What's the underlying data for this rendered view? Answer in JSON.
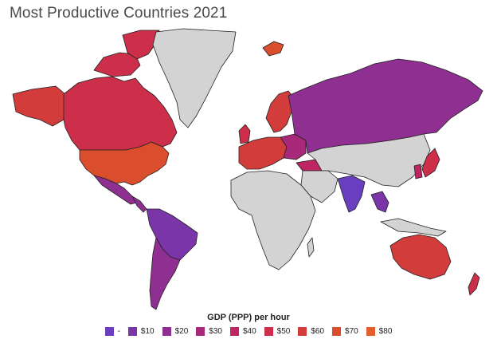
{
  "title": "Most Productive Countries 2021",
  "legend": {
    "title": "GDP (PPP) per hour",
    "items": [
      {
        "label": "-",
        "color": "#6a3fbf"
      },
      {
        "label": "$10",
        "color": "#7a35a9"
      },
      {
        "label": "$20",
        "color": "#902f92"
      },
      {
        "label": "$30",
        "color": "#a8287a"
      },
      {
        "label": "$40",
        "color": "#bf2463"
      },
      {
        "label": "$50",
        "color": "#cd2f4b"
      },
      {
        "label": "$60",
        "color": "#d23c3a"
      },
      {
        "label": "$70",
        "color": "#da4d2d"
      },
      {
        "label": "$80",
        "color": "#e35e2b"
      }
    ]
  },
  "colors": {
    "no_data": "#d3d3d3",
    "ocean": "#ffffff",
    "border": "#222222"
  }
}
